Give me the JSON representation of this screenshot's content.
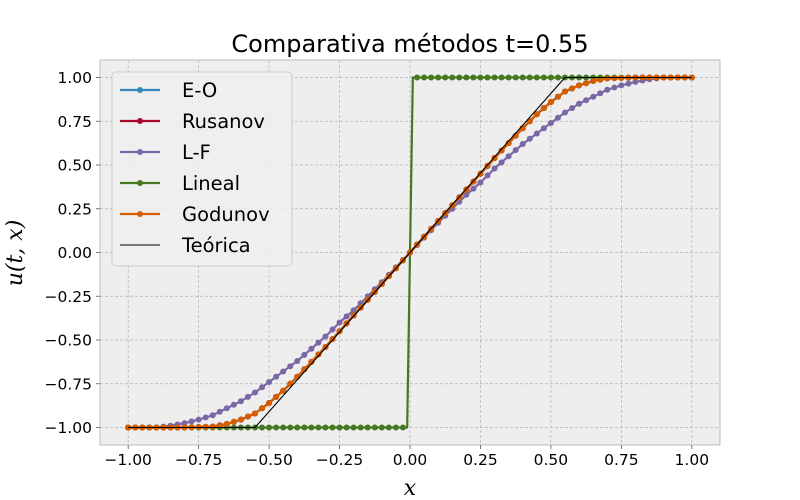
{
  "chart_data": {
    "type": "line",
    "title": "Comparativa métodos t=0.55",
    "xlabel": "x",
    "ylabel": "u(t, x)",
    "xlim": [
      -1.1,
      1.1
    ],
    "ylim": [
      -1.1,
      1.1
    ],
    "grid": true,
    "legend_position": "upper-left",
    "xticks": [
      -1.0,
      -0.75,
      -0.5,
      -0.25,
      0.0,
      0.25,
      0.5,
      0.75,
      1.0
    ],
    "yticks": [
      -1.0,
      -0.75,
      -0.5,
      -0.25,
      0.0,
      0.25,
      0.5,
      0.75,
      1.0
    ],
    "xtick_labels": [
      "−1.00",
      "−0.75",
      "−0.50",
      "−0.25",
      "0.00",
      "0.25",
      "0.50",
      "0.75",
      "1.00"
    ],
    "ytick_labels": [
      "−1.00",
      "−0.75",
      "−0.50",
      "−0.25",
      "0.00",
      "0.25",
      "0.50",
      "0.75",
      "1.00"
    ],
    "series": [
      {
        "name": "E-O",
        "color": "#348ABD",
        "marker": "circle",
        "points": [
          [
            -1.0,
            -1.0
          ],
          [
            -0.9,
            -1.0
          ],
          [
            -0.8,
            -1.0
          ],
          [
            -0.7,
            -0.995
          ],
          [
            -0.65,
            -0.98
          ],
          [
            -0.6,
            -0.955
          ],
          [
            -0.55,
            -0.92
          ],
          [
            -0.5,
            -0.86
          ],
          [
            -0.45,
            -0.79
          ],
          [
            -0.4,
            -0.71
          ],
          [
            -0.3,
            -0.54
          ],
          [
            -0.2,
            -0.36
          ],
          [
            -0.1,
            -0.18
          ],
          [
            0.0,
            0.0
          ],
          [
            0.1,
            0.18
          ],
          [
            0.2,
            0.36
          ],
          [
            0.3,
            0.54
          ],
          [
            0.4,
            0.71
          ],
          [
            0.45,
            0.79
          ],
          [
            0.5,
            0.86
          ],
          [
            0.55,
            0.92
          ],
          [
            0.6,
            0.955
          ],
          [
            0.65,
            0.98
          ],
          [
            0.7,
            0.995
          ],
          [
            0.8,
            1.0
          ],
          [
            0.9,
            1.0
          ],
          [
            1.0,
            1.0
          ]
        ]
      },
      {
        "name": "Rusanov",
        "color": "#A60628",
        "marker": "circle",
        "points": [
          [
            -1.0,
            -1.0
          ],
          [
            -0.9,
            -1.0
          ],
          [
            -0.8,
            -1.0
          ],
          [
            -0.7,
            -0.995
          ],
          [
            -0.65,
            -0.98
          ],
          [
            -0.6,
            -0.955
          ],
          [
            -0.55,
            -0.92
          ],
          [
            -0.5,
            -0.86
          ],
          [
            -0.45,
            -0.79
          ],
          [
            -0.4,
            -0.71
          ],
          [
            -0.3,
            -0.54
          ],
          [
            -0.2,
            -0.36
          ],
          [
            -0.1,
            -0.18
          ],
          [
            0.0,
            0.0
          ],
          [
            0.1,
            0.18
          ],
          [
            0.2,
            0.36
          ],
          [
            0.3,
            0.54
          ],
          [
            0.4,
            0.71
          ],
          [
            0.45,
            0.79
          ],
          [
            0.5,
            0.86
          ],
          [
            0.55,
            0.92
          ],
          [
            0.6,
            0.955
          ],
          [
            0.65,
            0.98
          ],
          [
            0.7,
            0.995
          ],
          [
            0.8,
            1.0
          ],
          [
            0.9,
            1.0
          ],
          [
            1.0,
            1.0
          ]
        ]
      },
      {
        "name": "L-F",
        "color": "#7A68A6",
        "marker": "circle",
        "points": [
          [
            -1.0,
            -1.0
          ],
          [
            -0.9,
            -1.0
          ],
          [
            -0.85,
            -0.99
          ],
          [
            -0.8,
            -0.975
          ],
          [
            -0.75,
            -0.955
          ],
          [
            -0.7,
            -0.93
          ],
          [
            -0.65,
            -0.89
          ],
          [
            -0.6,
            -0.85
          ],
          [
            -0.55,
            -0.8
          ],
          [
            -0.5,
            -0.74
          ],
          [
            -0.45,
            -0.68
          ],
          [
            -0.4,
            -0.62
          ],
          [
            -0.35,
            -0.55
          ],
          [
            -0.3,
            -0.48
          ],
          [
            -0.25,
            -0.4
          ],
          [
            -0.2,
            -0.33
          ],
          [
            -0.15,
            -0.25
          ],
          [
            -0.1,
            -0.17
          ],
          [
            -0.05,
            -0.085
          ],
          [
            0.0,
            0.0
          ],
          [
            0.05,
            0.085
          ],
          [
            0.1,
            0.17
          ],
          [
            0.15,
            0.25
          ],
          [
            0.2,
            0.33
          ],
          [
            0.25,
            0.4
          ],
          [
            0.3,
            0.48
          ],
          [
            0.35,
            0.55
          ],
          [
            0.4,
            0.62
          ],
          [
            0.45,
            0.68
          ],
          [
            0.5,
            0.74
          ],
          [
            0.55,
            0.8
          ],
          [
            0.6,
            0.85
          ],
          [
            0.65,
            0.89
          ],
          [
            0.7,
            0.93
          ],
          [
            0.75,
            0.955
          ],
          [
            0.8,
            0.975
          ],
          [
            0.85,
            0.99
          ],
          [
            0.9,
            1.0
          ],
          [
            1.0,
            1.0
          ]
        ]
      },
      {
        "name": "Lineal",
        "color": "#467821",
        "marker": "circle",
        "points": [
          [
            -1.0,
            -1.0
          ],
          [
            -0.01,
            -1.0
          ],
          [
            0.01,
            1.0
          ],
          [
            1.0,
            1.0
          ]
        ]
      },
      {
        "name": "Godunov",
        "color": "#D55E00",
        "marker": "circle",
        "points": [
          [
            -1.0,
            -1.0
          ],
          [
            -0.9,
            -1.0
          ],
          [
            -0.8,
            -1.0
          ],
          [
            -0.7,
            -0.995
          ],
          [
            -0.65,
            -0.98
          ],
          [
            -0.6,
            -0.955
          ],
          [
            -0.55,
            -0.92
          ],
          [
            -0.5,
            -0.86
          ],
          [
            -0.45,
            -0.79
          ],
          [
            -0.4,
            -0.71
          ],
          [
            -0.3,
            -0.54
          ],
          [
            -0.2,
            -0.36
          ],
          [
            -0.1,
            -0.18
          ],
          [
            0.0,
            0.0
          ],
          [
            0.1,
            0.18
          ],
          [
            0.2,
            0.36
          ],
          [
            0.3,
            0.54
          ],
          [
            0.4,
            0.71
          ],
          [
            0.45,
            0.79
          ],
          [
            0.5,
            0.86
          ],
          [
            0.55,
            0.92
          ],
          [
            0.6,
            0.955
          ],
          [
            0.65,
            0.98
          ],
          [
            0.7,
            0.995
          ],
          [
            0.8,
            1.0
          ],
          [
            0.9,
            1.0
          ],
          [
            1.0,
            1.0
          ]
        ]
      },
      {
        "name": "Teórica",
        "color": "#000000",
        "marker": "none",
        "points": [
          [
            -1.0,
            -1.0
          ],
          [
            -0.55,
            -1.0
          ],
          [
            0.55,
            1.0
          ],
          [
            1.0,
            1.0
          ]
        ]
      }
    ]
  }
}
